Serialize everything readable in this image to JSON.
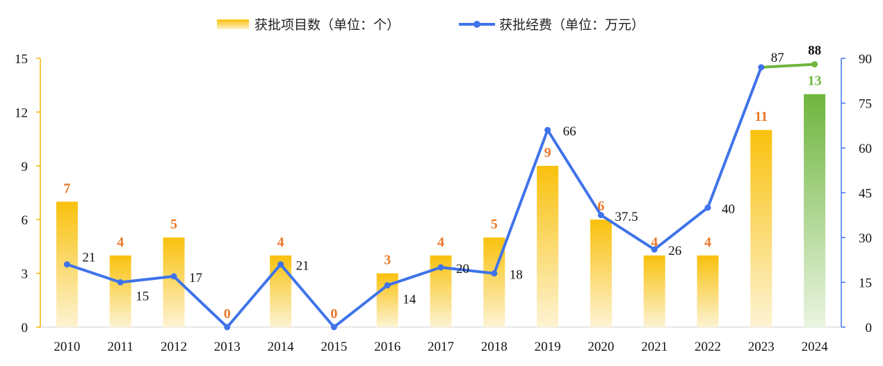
{
  "chart_data": {
    "type": "bar",
    "categories": [
      "2010",
      "2011",
      "2012",
      "2013",
      "2014",
      "2015",
      "2016",
      "2017",
      "2018",
      "2019",
      "2020",
      "2021",
      "2022",
      "2023",
      "2024"
    ],
    "series": [
      {
        "name": "获批项目数（单位：个）",
        "type": "bar",
        "axis": "left",
        "values": [
          7,
          4,
          5,
          0,
          4,
          0,
          3,
          4,
          5,
          9,
          6,
          4,
          4,
          11,
          13
        ],
        "labels": [
          "7",
          "4",
          "5",
          "0",
          "4",
          "0",
          "3",
          "4",
          "5",
          "9",
          "6",
          "4",
          "4",
          "11",
          "13"
        ]
      },
      {
        "name": "获批经费（单位：万元）",
        "type": "line",
        "axis": "right",
        "values": [
          21,
          15,
          17,
          0,
          21,
          0,
          14,
          20,
          18,
          66,
          37.5,
          26,
          40,
          87,
          88
        ],
        "labels": [
          "21",
          "15",
          "17",
          "",
          "21",
          "",
          "14",
          "20",
          "18",
          "66",
          "37.5",
          "26",
          "40",
          "87",
          "88"
        ]
      }
    ],
    "y_left": {
      "range": [
        0,
        15
      ],
      "ticks": [
        "0",
        "3",
        "6",
        "9",
        "12",
        "15"
      ]
    },
    "y_right": {
      "range": [
        0,
        90
      ],
      "ticks": [
        "0",
        "15",
        "30",
        "45",
        "60",
        "75",
        "90"
      ]
    },
    "legend_position": "top-center",
    "grid": false,
    "colors": {
      "bar": "#f9c10d",
      "bar_highlight": "#6fb53e",
      "line": "#3f73ea",
      "line_highlight": "#6fb53e",
      "bar_label": "#e8782a",
      "highlight_label": "#6fb53e",
      "left_axis": "#f2b400",
      "right_axis": "#3f73ea"
    }
  }
}
